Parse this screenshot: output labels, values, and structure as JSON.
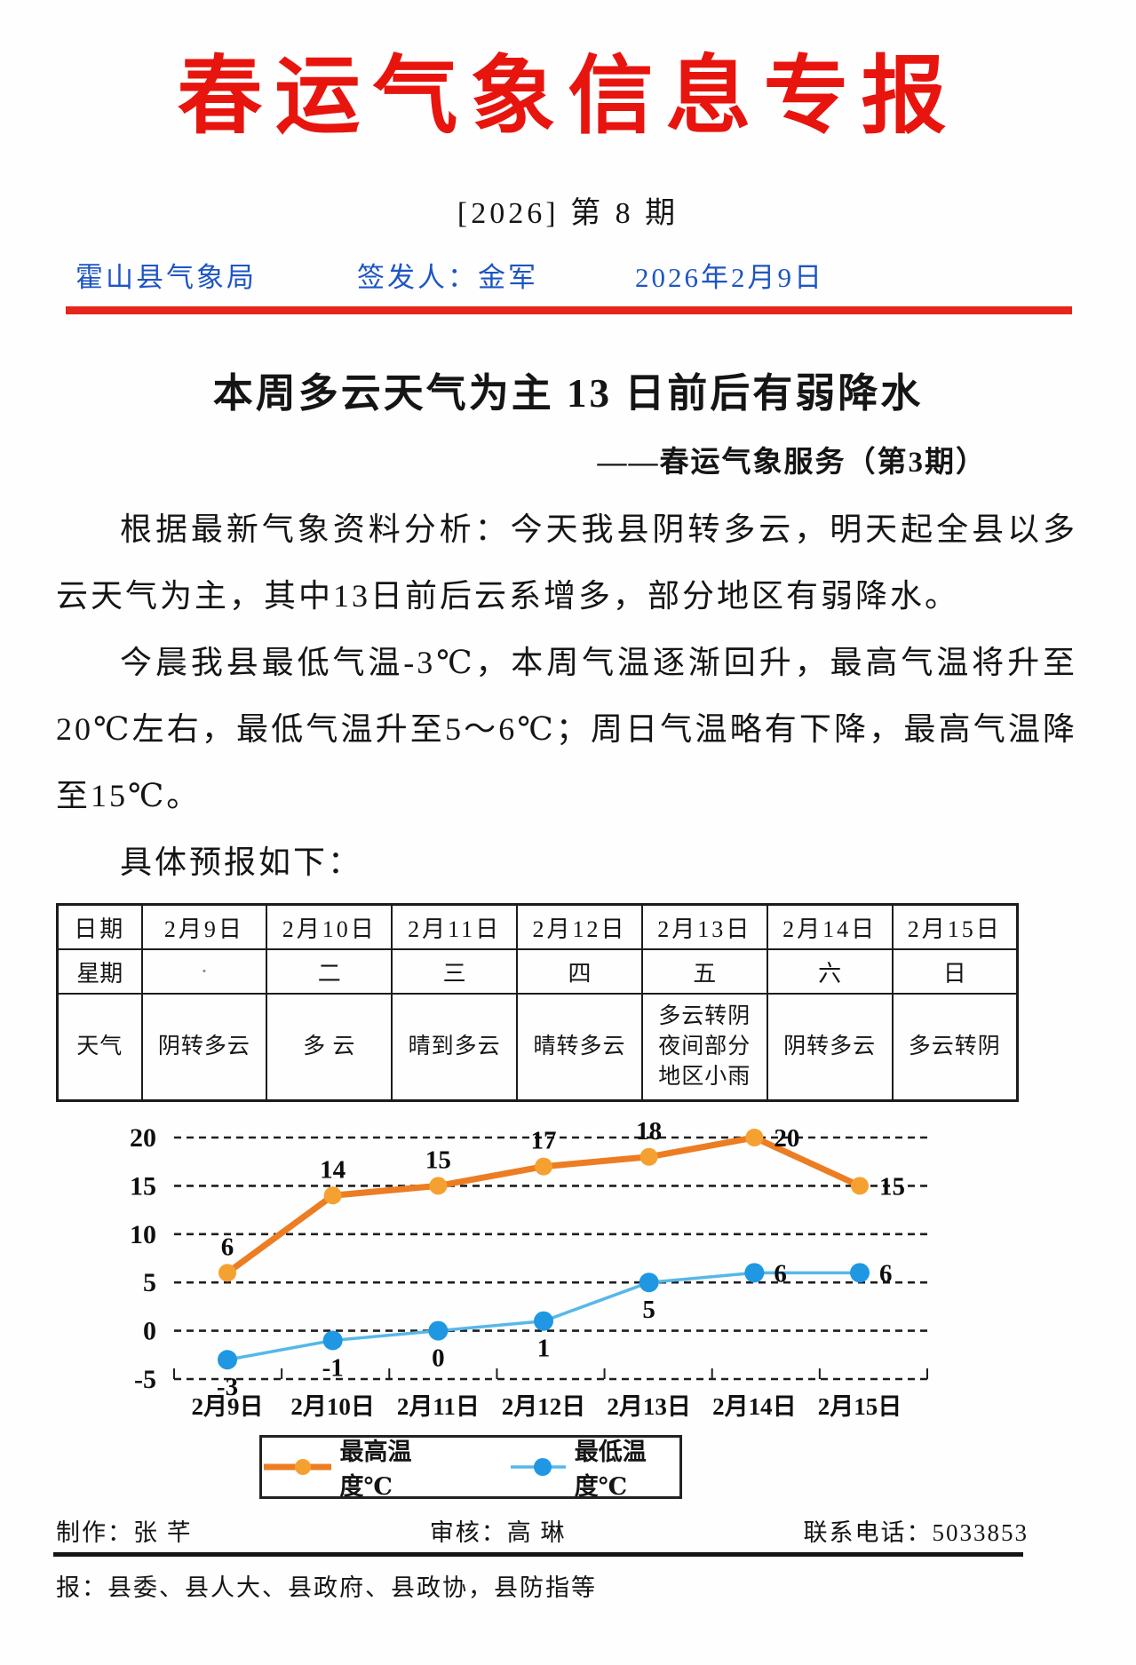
{
  "doc": {
    "title": "春运气象信息专报",
    "issue": "[2026] 第 8 期",
    "agency": "霍山县气象局",
    "issuer": "签发人：金军",
    "date": "2026年2月9日",
    "headline": "本周多云天气为主 13 日前后有弱降水",
    "subtitle": "——春运气象服务（第3期）",
    "para1": "根据最新气象资料分析：今天我县阴转多云，明天起全县以多云天气为主，其中13日前后云系增多，部分地区有弱降水。",
    "para2": "今晨我县最低气温-3℃，本周气温逐渐回升，最高气温将升至20℃左右，最低气温升至5～6℃；周日气温略有下降，最高气温降至15℃。",
    "para3": "具体预报如下："
  },
  "forecast_table": {
    "row_labels": [
      "日期",
      "星期",
      "天气"
    ],
    "dates": [
      "2月9日",
      "2月10日",
      "2月11日",
      "2月12日",
      "2月13日",
      "2月14日",
      "2月15日"
    ],
    "weekdays": [
      "·",
      "二",
      "三",
      "四",
      "五",
      "六",
      "日"
    ],
    "weather": [
      "阴转多云",
      "多 云",
      "晴到多云",
      "晴转多云",
      "多云转阴\n夜间部分\n地区小雨",
      "阴转多云",
      "多云转阴"
    ]
  },
  "chart_data": {
    "type": "line",
    "title": "",
    "xlabel": "",
    "ylabel": "",
    "x": [
      "2月9日",
      "2月10日",
      "2月11日",
      "2月12日",
      "2月13日",
      "2月14日",
      "2月15日"
    ],
    "series": [
      {
        "name": "最高温度℃",
        "values": [
          6,
          14,
          15,
          17,
          18,
          20,
          15
        ],
        "line_color": "#ed7d22",
        "marker_color": "#f5a131",
        "label_placement": [
          "above",
          "above",
          "above",
          "above",
          "above",
          "right",
          "right"
        ]
      },
      {
        "name": "最低温度℃",
        "values": [
          -3,
          -1,
          0,
          1,
          5,
          6,
          6
        ],
        "line_color": "#56b8e8",
        "marker_color": "#1f97e2",
        "label_placement": [
          "below",
          "below",
          "below",
          "below",
          "below",
          "right",
          "right"
        ]
      }
    ],
    "ylim": [
      -5,
      20
    ],
    "yticks": [
      20,
      15,
      10,
      5,
      0,
      -5
    ],
    "grid": "horizontal-dashed",
    "legend_position": "bottom"
  },
  "footer": {
    "maker": "制作：张  芊",
    "reviewer": "审核：高  琳",
    "phone": "联系电话：5033853",
    "distribution": "报：县委、县人大、县政府、县政协，县防指等"
  },
  "colors": {
    "title_red": "#e8140e",
    "rule_red": "#e6251c",
    "header_blue": "#1d55c4",
    "grid_line": "#1e1e1e",
    "text_black": "#151515"
  }
}
